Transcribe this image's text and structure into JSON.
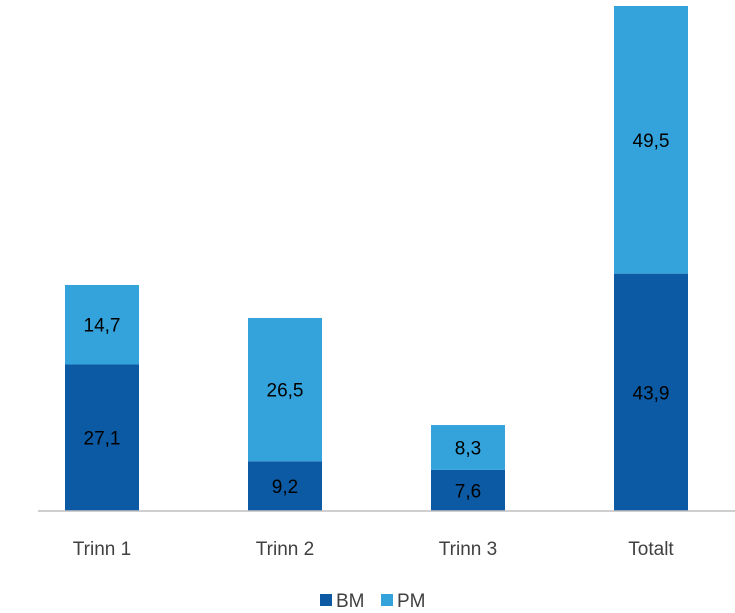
{
  "chart_data": {
    "type": "bar",
    "stacked": true,
    "categories": [
      "Trinn 1",
      "Trinn 2",
      "Trinn 3",
      "Totalt"
    ],
    "series": [
      {
        "name": "BM",
        "values": [
          27.1,
          9.2,
          7.6,
          43.9
        ],
        "labels": [
          "27,1",
          "9,2",
          "7,6",
          "43,9"
        ],
        "color": "#0b5aa3"
      },
      {
        "name": "PM",
        "values": [
          14.7,
          26.5,
          8.3,
          49.5
        ],
        "labels": [
          "14,7",
          "26,5",
          "8,3",
          "49,5"
        ],
        "color": "#34a3dc"
      }
    ],
    "legend_position": "bottom",
    "grid": false,
    "ylim": [
      0,
      93.4
    ],
    "colors": {
      "axis": "#bfbfbf",
      "text": "#404040",
      "label_text": "#000000"
    }
  }
}
